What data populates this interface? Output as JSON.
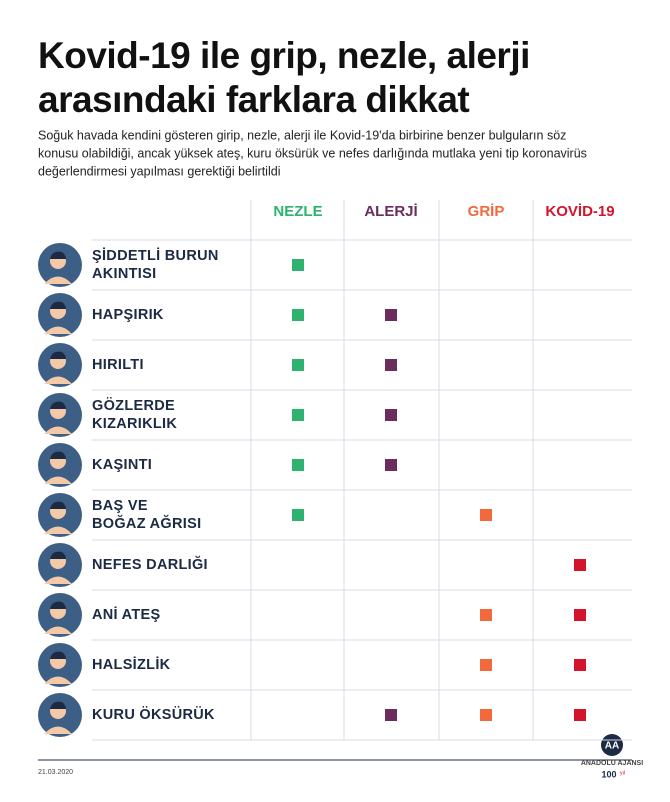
{
  "header": {
    "title": [
      "Kovid-19 ile grip, nezle, alerji",
      "arasındaki farklara dikkat"
    ],
    "subtitle": [
      "Soğuk havada kendini gösteren girip, nezle, alerji ile Kovid-19'da birbirine benzer bulguların söz",
      "konusu olabildiği, ancak yüksek ateş, kuru öksürük ve nefes darlığında mutlaka yeni tip koronavirüs",
      "değerlendirmesi yapılması gerektiği belirtildi"
    ]
  },
  "table": {
    "columns": [
      {
        "name": "NEZLE",
        "color": "#2db36f"
      },
      {
        "name": "ALERJİ",
        "color": "#6b2d5e"
      },
      {
        "name": "GRİP",
        "color": "#f26a3c"
      },
      {
        "name": "KOVİD-19",
        "color": "#d2142d"
      }
    ],
    "rows": [
      {
        "label": [
          "ŞİDDETLİ BURUN",
          "AKINTISI"
        ],
        "marks": [
          true,
          false,
          false,
          false
        ]
      },
      {
        "label": [
          "HAPŞIRIK"
        ],
        "marks": [
          true,
          true,
          false,
          false
        ]
      },
      {
        "label": [
          "HIRILTI"
        ],
        "marks": [
          true,
          true,
          false,
          false
        ]
      },
      {
        "label": [
          "GÖZLERDE",
          "KIZARIKLIK"
        ],
        "marks": [
          true,
          true,
          false,
          false
        ]
      },
      {
        "label": [
          "KAŞINTI"
        ],
        "marks": [
          true,
          true,
          false,
          false
        ]
      },
      {
        "label": [
          "BAŞ VE",
          "BOĞAZ AĞRISI"
        ],
        "marks": [
          true,
          false,
          true,
          false
        ]
      },
      {
        "label": [
          "NEFES DARLIĞI"
        ],
        "marks": [
          false,
          false,
          false,
          true
        ]
      },
      {
        "label": [
          "ANİ ATEŞ"
        ],
        "marks": [
          false,
          false,
          true,
          true
        ]
      },
      {
        "label": [
          "HALSİZLİK"
        ],
        "marks": [
          false,
          false,
          true,
          true
        ]
      },
      {
        "label": [
          "KURU ÖKSÜRÜK"
        ],
        "marks": [
          false,
          true,
          true,
          true
        ]
      }
    ]
  },
  "footer": {
    "date": "21.03.2020",
    "logo": "AA",
    "agency": "ANADOLU AJANSI",
    "anniversary": "100",
    "anniversary_unit": "yıl"
  }
}
